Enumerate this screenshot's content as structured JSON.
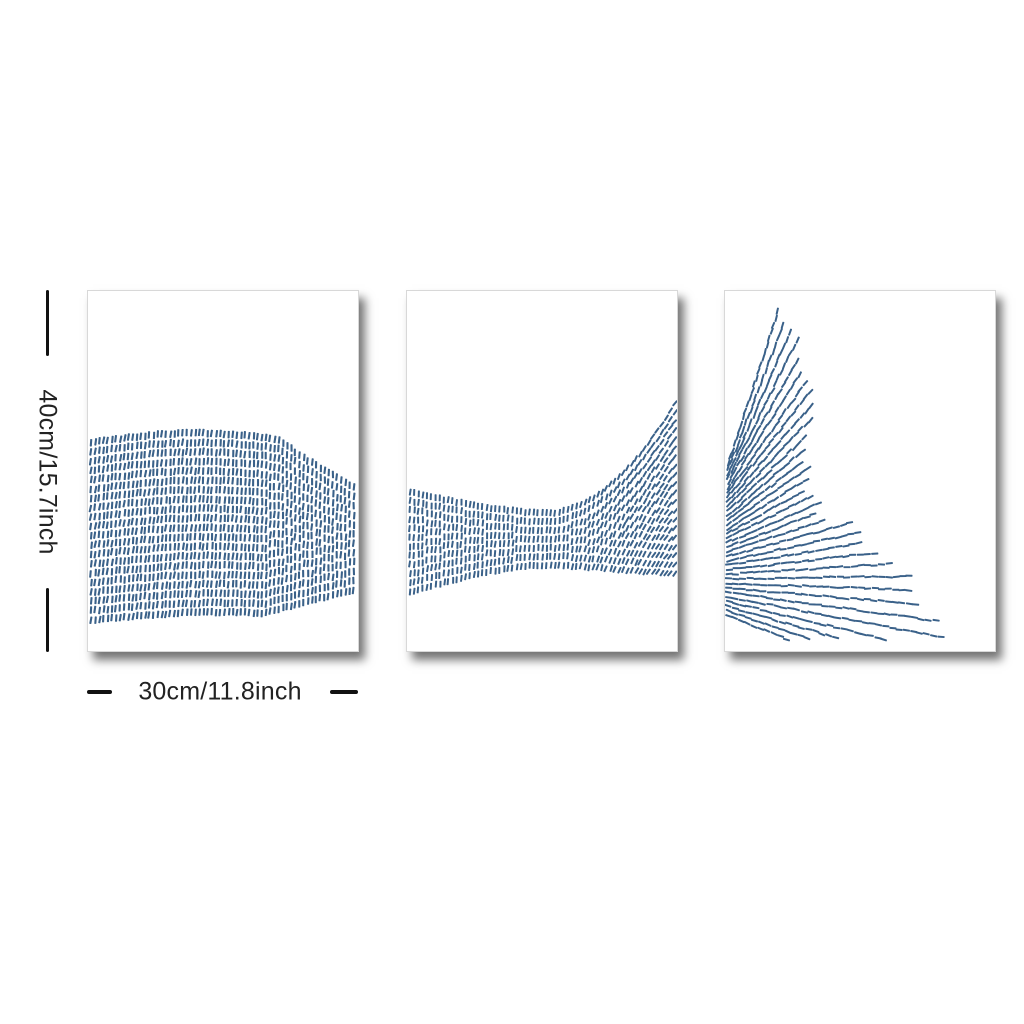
{
  "product": {
    "panel_count": 3,
    "panels": [
      {
        "artwork": "fish-body-dashes"
      },
      {
        "artwork": "fish-tail-stem-dashes"
      },
      {
        "artwork": "fish-tail-fin-dashes"
      }
    ]
  },
  "dimensions": {
    "height_label": "40cm/15.7inch",
    "width_label": "30cm/11.8inch"
  },
  "colors": {
    "background": "#ffffff",
    "dash_color": "#3a6189",
    "dimension_ink": "#111111"
  }
}
